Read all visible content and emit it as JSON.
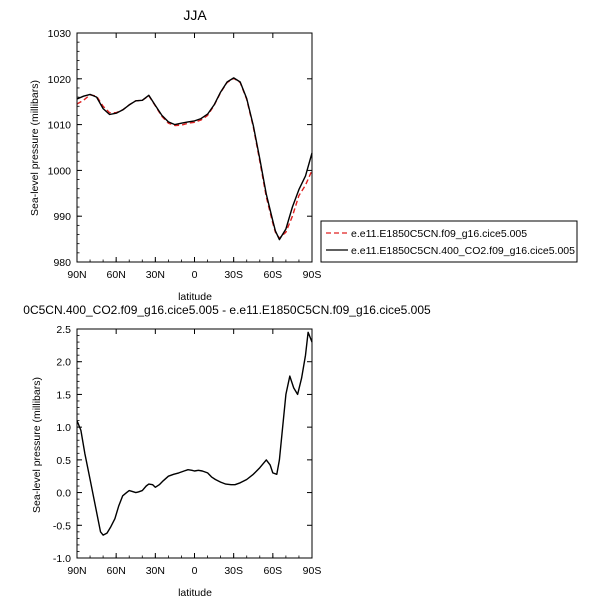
{
  "chart_data": [
    {
      "type": "line",
      "title": "JJA",
      "xlabel": "latitude",
      "ylabel": "Sea-level pressure (millibars)",
      "xlim": [
        90,
        -90
      ],
      "ylim": [
        980,
        1030
      ],
      "xticks": [
        90,
        60,
        30,
        0,
        -30,
        -60,
        -90
      ],
      "xtick_labels": [
        "90N",
        "60N",
        "30N",
        "0",
        "30S",
        "60S",
        "90S"
      ],
      "yticks": [
        980,
        990,
        1000,
        1010,
        1020,
        1030
      ],
      "ytick_labels": [
        "980",
        "990",
        "1000",
        "1010",
        "1020",
        "1030"
      ],
      "legend_position": "right",
      "series": [
        {
          "name": "e.e11.E1850C5CN.f09_g16.cice5.005",
          "color": "#e02020",
          "dash": "dashed",
          "x": [
            90,
            85,
            80,
            75,
            70,
            65,
            60,
            55,
            50,
            45,
            40,
            35,
            30,
            25,
            20,
            15,
            10,
            5,
            0,
            -5,
            -10,
            -15,
            -20,
            -25,
            -30,
            -35,
            -40,
            -45,
            -50,
            -55,
            -60,
            -62,
            -65,
            -70,
            -75,
            -80,
            -85,
            -90
          ],
          "y": [
            1014.5,
            1015.3,
            1016.5,
            1016.2,
            1014.0,
            1012.6,
            1012.6,
            1013.2,
            1014.3,
            1015.2,
            1015.3,
            1016.3,
            1014.1,
            1011.8,
            1010.3,
            1009.8,
            1009.9,
            1010.3,
            1010.5,
            1011.0,
            1012.0,
            1014.2,
            1017.0,
            1019.2,
            1020.1,
            1019.2,
            1015.5,
            1009.5,
            1002.0,
            994.2,
            988.5,
            986.5,
            985.2,
            986.5,
            990.0,
            994.5,
            996.8,
            1000.0
          ]
        },
        {
          "name": "e.e11.E1850C5CN.400_CO2.f09_g16.cice5.005",
          "color": "#000000",
          "dash": "solid",
          "x": [
            90,
            85,
            80,
            75,
            70,
            65,
            60,
            55,
            50,
            45,
            40,
            35,
            30,
            25,
            20,
            15,
            10,
            5,
            0,
            -5,
            -10,
            -15,
            -20,
            -25,
            -30,
            -35,
            -40,
            -45,
            -50,
            -55,
            -60,
            -62,
            -65,
            -70,
            -75,
            -80,
            -85,
            -90
          ],
          "y": [
            1015.6,
            1016.2,
            1016.6,
            1016.0,
            1013.5,
            1012.2,
            1012.5,
            1013.2,
            1014.3,
            1015.2,
            1015.3,
            1016.4,
            1014.2,
            1012.0,
            1010.6,
            1010.0,
            1010.3,
            1010.6,
            1010.8,
            1011.3,
            1012.3,
            1014.3,
            1017.1,
            1019.3,
            1020.2,
            1019.3,
            1015.7,
            1009.8,
            1002.5,
            994.8,
            989.0,
            986.8,
            984.9,
            987.2,
            992.0,
            995.8,
            998.8,
            1003.8
          ]
        }
      ]
    },
    {
      "type": "line",
      "title": "0C5CN.400_CO2.f09_g16.cice5.005 - e.e11.E1850C5CN.f09_g16.cice5.005",
      "xlabel": "latitude",
      "ylabel": "Sea-level pressure (millibars)",
      "xlim": [
        90,
        -90
      ],
      "ylim": [
        -1.0,
        2.5
      ],
      "xticks": [
        90,
        60,
        30,
        0,
        -30,
        -60,
        -90
      ],
      "xtick_labels": [
        "90N",
        "60N",
        "30N",
        "0",
        "30S",
        "60S",
        "90S"
      ],
      "yticks": [
        -1.0,
        -0.5,
        0.0,
        0.5,
        1.0,
        1.5,
        2.0,
        2.5
      ],
      "ytick_labels": [
        "-1.0",
        "-0.5",
        "0.0",
        "0.5",
        "1.0",
        "1.5",
        "2.0",
        "2.5"
      ],
      "series": [
        {
          "color": "#000000",
          "dash": "solid",
          "x": [
            90,
            87,
            84,
            80,
            77,
            74,
            72,
            70,
            67,
            64,
            61,
            58,
            55,
            52,
            50,
            48,
            45,
            43,
            40,
            37,
            35,
            32,
            30,
            27,
            24,
            20,
            16,
            12,
            8,
            5,
            2,
            0,
            -3,
            -6,
            -10,
            -13,
            -16,
            -20,
            -24,
            -28,
            -31,
            -35,
            -40,
            -45,
            -50,
            -55,
            -58,
            -60,
            -63,
            -65,
            -67,
            -70,
            -73,
            -76,
            -79,
            -82,
            -85,
            -87,
            -89,
            -90
          ],
          "y": [
            1.1,
            0.95,
            0.6,
            0.2,
            -0.1,
            -0.4,
            -0.6,
            -0.65,
            -0.62,
            -0.52,
            -0.4,
            -0.2,
            -0.05,
            0.0,
            0.03,
            0.02,
            0.0,
            0.01,
            0.03,
            0.1,
            0.13,
            0.12,
            0.08,
            0.12,
            0.18,
            0.25,
            0.28,
            0.3,
            0.33,
            0.35,
            0.34,
            0.33,
            0.34,
            0.33,
            0.3,
            0.24,
            0.2,
            0.16,
            0.13,
            0.12,
            0.12,
            0.15,
            0.2,
            0.28,
            0.38,
            0.5,
            0.42,
            0.3,
            0.28,
            0.5,
            0.9,
            1.5,
            1.78,
            1.6,
            1.5,
            1.75,
            2.1,
            2.45,
            2.35,
            2.3
          ]
        }
      ]
    }
  ]
}
